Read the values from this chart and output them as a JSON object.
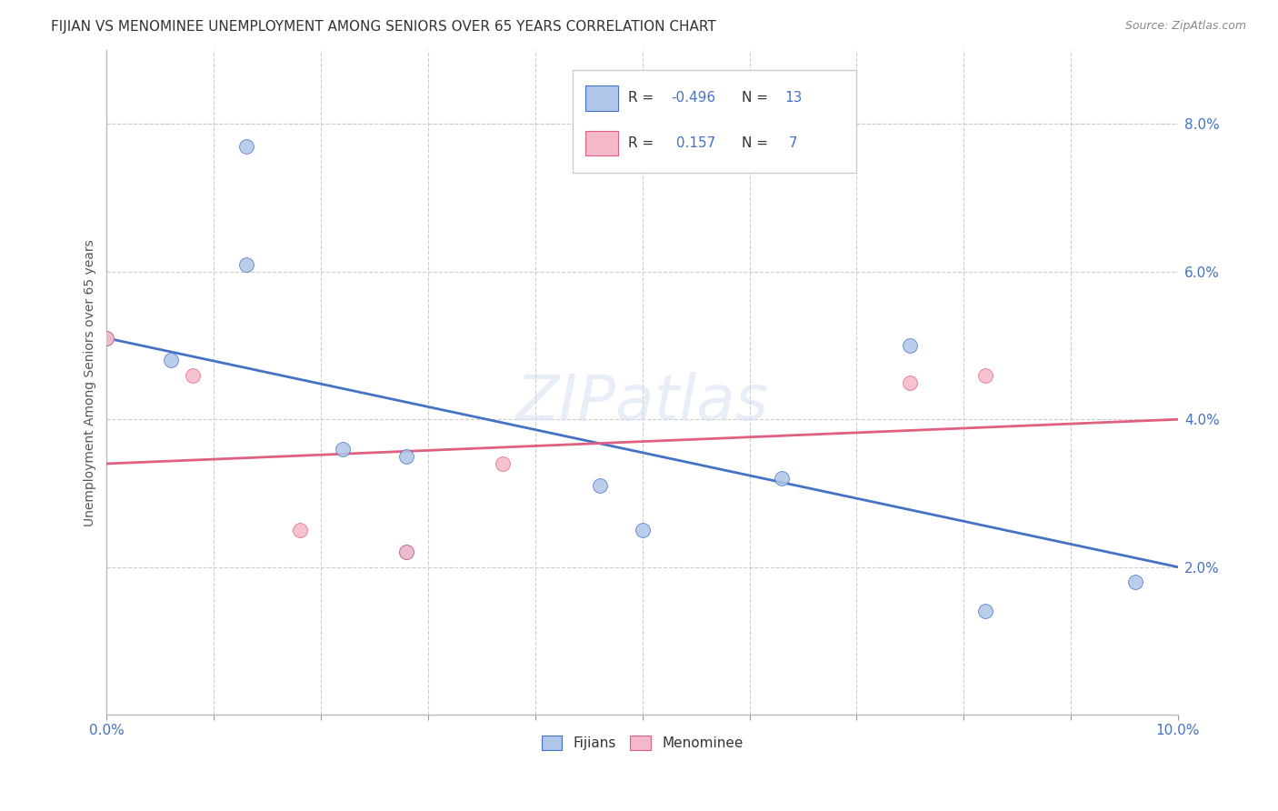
{
  "title": "FIJIAN VS MENOMINEE UNEMPLOYMENT AMONG SENIORS OVER 65 YEARS CORRELATION CHART",
  "source": "Source: ZipAtlas.com",
  "ylabel": "Unemployment Among Seniors over 65 years",
  "xlim": [
    0.0,
    0.1
  ],
  "ylim": [
    0.0,
    0.09
  ],
  "xtick_positions": [
    0.0,
    0.01,
    0.02,
    0.03,
    0.04,
    0.05,
    0.06,
    0.07,
    0.08,
    0.09,
    0.1
  ],
  "xtick_labels_show": {
    "0.0": "0.0%",
    "0.10": "10.0%"
  },
  "yticks_right": [
    0.02,
    0.04,
    0.06,
    0.08
  ],
  "ytick_labels_right": [
    "2.0%",
    "4.0%",
    "6.0%",
    "8.0%"
  ],
  "fijians_x": [
    0.0,
    0.006,
    0.013,
    0.013,
    0.022,
    0.028,
    0.028,
    0.046,
    0.05,
    0.063,
    0.075,
    0.082,
    0.096
  ],
  "fijians_y": [
    0.051,
    0.048,
    0.077,
    0.061,
    0.036,
    0.035,
    0.022,
    0.031,
    0.025,
    0.032,
    0.05,
    0.014,
    0.018
  ],
  "menominee_x": [
    0.0,
    0.008,
    0.018,
    0.028,
    0.037,
    0.075,
    0.082
  ],
  "menominee_y": [
    0.051,
    0.046,
    0.025,
    0.022,
    0.034,
    0.045,
    0.046
  ],
  "fijians_color": "#aec6e8",
  "menominee_color": "#f5b8c8",
  "fijians_line_color": "#4472c4",
  "menominee_line_color": "#e06080",
  "fijians_r": -0.496,
  "fijians_n": 13,
  "menominee_r": 0.157,
  "menominee_n": 7,
  "legend_labels": [
    "Fijians",
    "Menominee"
  ],
  "watermark": "ZIPatlas",
  "background_color": "#ffffff",
  "grid_color": "#cccccc",
  "title_color": "#333333",
  "axis_label_color": "#555555",
  "marker_size": 130,
  "fijians_trend_x": [
    0.0,
    0.1
  ],
  "fijians_trend_y": [
    0.051,
    0.02
  ],
  "menominee_trend_x": [
    0.0,
    0.1
  ],
  "menominee_trend_y": [
    0.034,
    0.04
  ]
}
